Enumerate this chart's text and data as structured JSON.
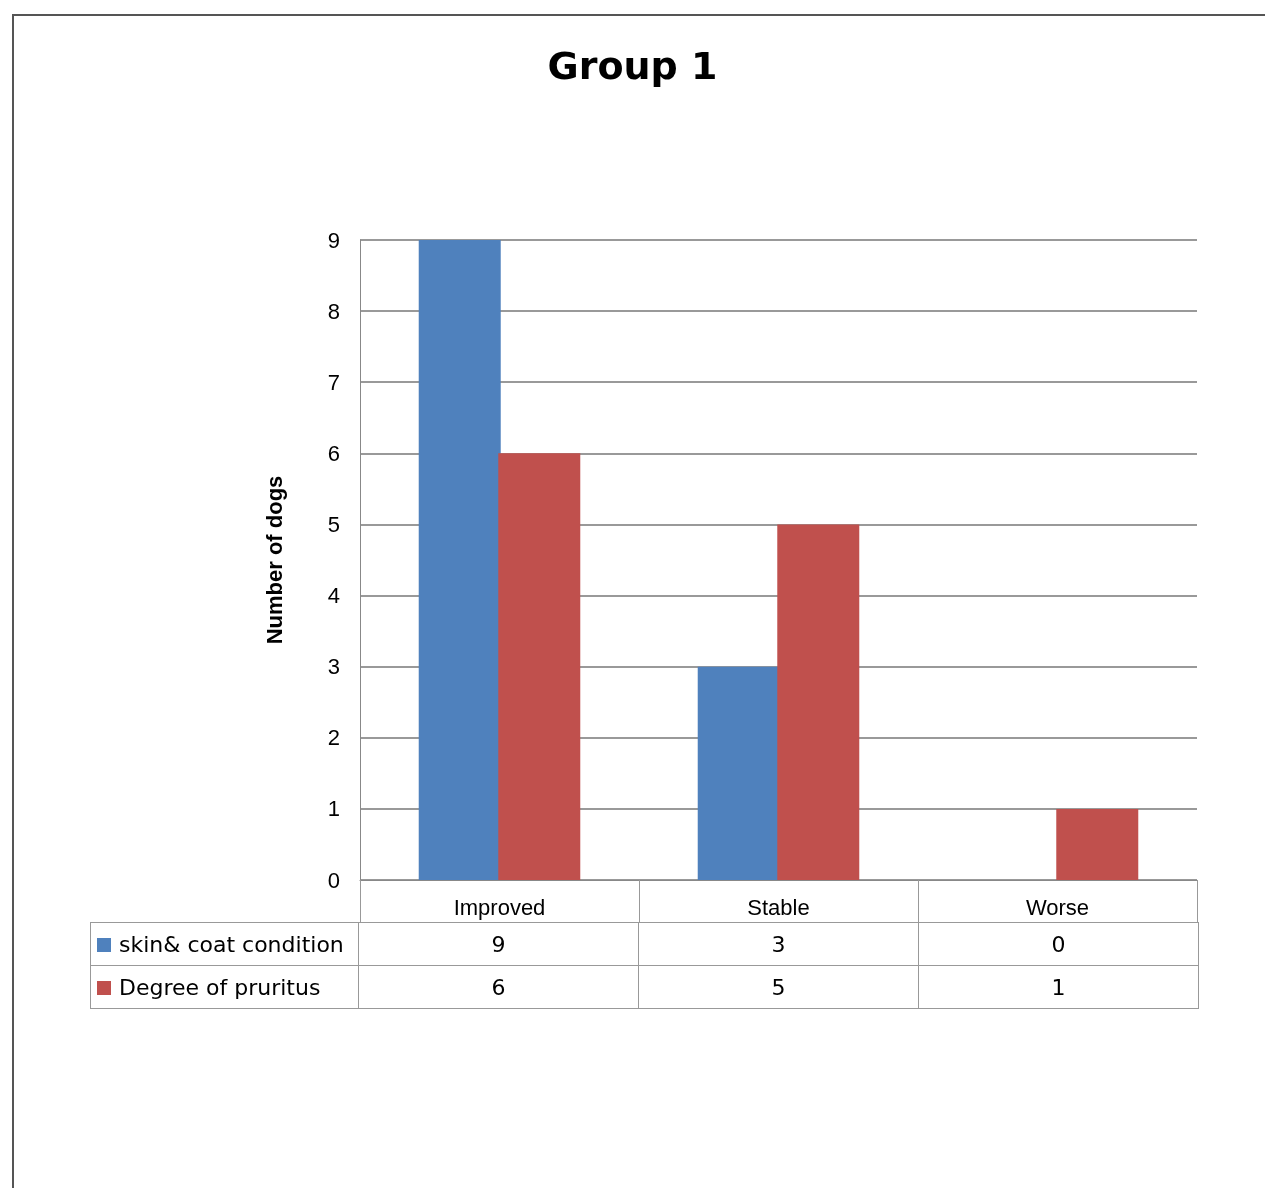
{
  "chart_data": {
    "type": "bar",
    "title": "Group 1",
    "ylabel": "Number of dogs",
    "categories": [
      "Improved",
      "Stable",
      "Worse"
    ],
    "series": [
      {
        "name": "skin& coat condition",
        "color": "#4f81bd",
        "values": [
          9,
          3,
          0
        ]
      },
      {
        "name": "Degree of pruritus",
        "color": "#c0504d",
        "values": [
          6,
          5,
          1
        ]
      }
    ],
    "ylim": [
      0,
      9
    ],
    "yticks": [
      0,
      1,
      2,
      3,
      4,
      5,
      6,
      7,
      8,
      9
    ],
    "grid": "y",
    "legend": "bottom",
    "data_labels": true
  }
}
